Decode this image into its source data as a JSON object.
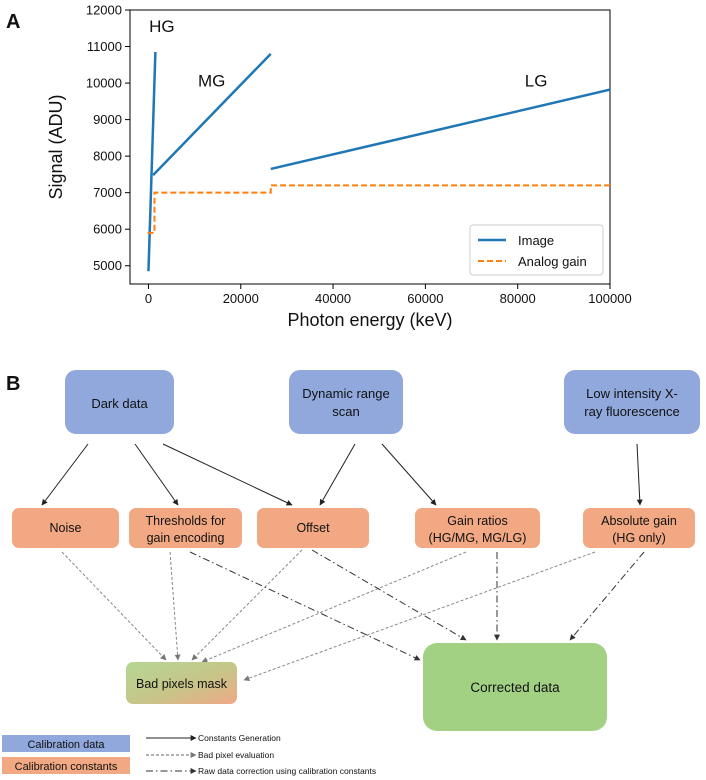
{
  "panel_a": {
    "letter": "A"
  },
  "panel_b": {
    "letter": "B"
  },
  "chart_data": {
    "type": "line",
    "title": "",
    "xlabel": "Photon energy (keV)",
    "ylabel": "Signal (ADU)",
    "xlim": [
      -4000,
      100000
    ],
    "ylim": [
      4500,
      12000
    ],
    "xticks": [
      0,
      20000,
      40000,
      60000,
      80000,
      100000
    ],
    "xtick_labels": [
      "0",
      "20000",
      "40000",
      "60000",
      "80000",
      "100000"
    ],
    "yticks": [
      5000,
      6000,
      7000,
      8000,
      9000,
      10000,
      11000,
      12000
    ],
    "ytick_labels": [
      "5000",
      "6000",
      "7000",
      "8000",
      "9000",
      "10000",
      "11000",
      "12000"
    ],
    "legend": {
      "position": "lower-right",
      "entries": [
        "Image",
        "Analog gain"
      ]
    },
    "series": [
      {
        "name": "Image",
        "style": "solid",
        "color": "#1f77b4",
        "segments": [
          {
            "label": "HG",
            "points": [
              [
                0,
                4850
              ],
              [
                1500,
                10850
              ]
            ]
          },
          {
            "label": "MG",
            "points": [
              [
                1000,
                7480
              ],
              [
                26500,
                10800
              ]
            ]
          },
          {
            "label": "LG",
            "points": [
              [
                26500,
                7650
              ],
              [
                100000,
                9820
              ]
            ]
          }
        ]
      },
      {
        "name": "Analog gain",
        "style": "dashed",
        "color": "#ff7f0e",
        "points": [
          [
            -200,
            5900
          ],
          [
            1300,
            5900
          ],
          [
            1300,
            7000
          ],
          [
            26500,
            7000
          ],
          [
            26500,
            7200
          ],
          [
            100000,
            7200
          ]
        ]
      }
    ],
    "annotations": [
      {
        "text": "HG",
        "x": 2900,
        "y": 11400
      },
      {
        "text": "MG",
        "x": 13700,
        "y": 9900
      },
      {
        "text": "LG",
        "x": 84000,
        "y": 9900
      }
    ]
  },
  "diagram": {
    "sources": [
      {
        "id": "dark",
        "lines": [
          "Dark data"
        ]
      },
      {
        "id": "dyn",
        "lines": [
          "Dynamic range",
          "scan"
        ]
      },
      {
        "id": "lix",
        "lines": [
          "Low intensity X-",
          "ray fluorescence"
        ]
      }
    ],
    "constants": [
      {
        "id": "noise",
        "lines": [
          "Noise"
        ]
      },
      {
        "id": "thr",
        "lines": [
          "Thresholds for",
          "gain encoding"
        ]
      },
      {
        "id": "offset",
        "lines": [
          "Offset"
        ]
      },
      {
        "id": "gr",
        "lines": [
          "Gain ratios",
          "(HG/MG, MG/LG)"
        ]
      },
      {
        "id": "abs",
        "lines": [
          "Absolute gain",
          "(HG only)"
        ]
      }
    ],
    "bad_pixels": "Bad pixels mask",
    "corrected": "Corrected data",
    "legend_boxes": [
      "Calibration data",
      "Calibration constants"
    ],
    "legend_lines": [
      "Constants Generation",
      "Bad pixel evaluation",
      "Raw data correction using calibration constants"
    ]
  },
  "colors": {
    "image_line": "#1f77b4",
    "analog_line": "#ff7f0e",
    "calibration_data": "#90a8dc",
    "calibration_constants": "#f2a882",
    "corrected": "#a3d183",
    "bad_mask_a": "#a9d48a",
    "bad_mask_b": "#f1a27f"
  }
}
